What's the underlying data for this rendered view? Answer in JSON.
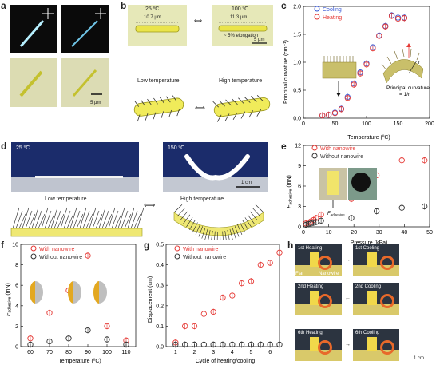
{
  "panels": {
    "a": {
      "label": "a",
      "scalebar": "5 µm"
    },
    "b": {
      "label": "b",
      "left_temp": "25 ºC",
      "right_temp": "100 ºC",
      "left_len": "10.7 µm",
      "right_len": "11.3 µm",
      "elongation": "~ 5% elongation",
      "scalebar": "5 µm",
      "low": "Low temperature",
      "high": "High temperature"
    },
    "c": {
      "label": "c",
      "cooling": "Cooling",
      "heating": "Heating",
      "ylabel": "Principal curvature (cm⁻¹)",
      "xlabel": "Temperature (ºC)",
      "pc_label": "Principal curvature",
      "pc_eq": "= 1/r",
      "r": "r"
    },
    "d": {
      "label": "d",
      "left_temp": "25 ºC",
      "right_temp": "150 ºC",
      "scalebar": "1 cm",
      "low": "Low temperature",
      "high": "High temperature"
    },
    "e": {
      "label": "e",
      "with": "With nanowire",
      "without": "Without nanowire",
      "ylabel": "F",
      "ysub": "adhesive",
      "yunit": " (mN)",
      "xlabel": "Pressure (kPa)",
      "inset_label": "F",
      "inset_sub": "adhesive"
    },
    "f": {
      "label": "f",
      "with": "With nanowire",
      "without": "Without nanowire",
      "ylabel": "F",
      "ysub": "adhesive",
      "yunit": " (mN)",
      "xlabel": "Temperature (ºC)"
    },
    "g": {
      "label": "g",
      "with": "With nanowire",
      "without": "Without nanowire",
      "ylabel": "Displacement (cm)",
      "xlabel": "Cycle of heating/cooling"
    },
    "h": {
      "label": "h",
      "h1": "1st Heating",
      "c1": "1st Cooling",
      "h2": "2nd Heating",
      "c2": "2nd Cooling",
      "h6": "6th Heating",
      "c6": "6th Cooling",
      "flat": "Flat",
      "nanowire": "Nanowire",
      "dots": "...",
      "scalebar": "1 cm"
    }
  },
  "chart_data": [
    {
      "id": "c",
      "type": "scatter",
      "xlim": [
        0,
        200
      ],
      "ylim": [
        0,
        2.0
      ],
      "xticks": [
        0,
        50,
        100,
        150,
        200
      ],
      "yticks": [
        0.0,
        0.5,
        1.0,
        1.5,
        2.0
      ],
      "series": [
        {
          "name": "Cooling",
          "color": "#3b5bd6",
          "x": [
            30,
            40,
            50,
            60,
            70,
            80,
            90,
            100,
            110,
            120,
            130,
            140,
            150,
            160
          ],
          "y": [
            0.05,
            0.06,
            0.1,
            0.17,
            0.38,
            0.62,
            0.82,
            0.98,
            1.27,
            1.48,
            1.65,
            1.84,
            1.8,
            1.8
          ]
        },
        {
          "name": "Heating",
          "color": "#e53935",
          "x": [
            30,
            40,
            50,
            60,
            70,
            80,
            90,
            100,
            110,
            120,
            130,
            140,
            150,
            160
          ],
          "y": [
            0.05,
            0.06,
            0.09,
            0.16,
            0.36,
            0.6,
            0.8,
            0.96,
            1.25,
            1.47,
            1.64,
            1.83,
            1.78,
            1.79
          ]
        }
      ]
    },
    {
      "id": "e",
      "type": "scatter",
      "xlim": [
        0,
        50
      ],
      "ylim": [
        0,
        12
      ],
      "xticks": [
        0,
        10,
        20,
        30,
        40,
        50
      ],
      "yticks": [
        0,
        3,
        6,
        9,
        12
      ],
      "series": [
        {
          "name": "With nanowire",
          "color": "#e53935",
          "x": [
            1,
            2,
            3,
            4,
            5,
            7,
            19,
            29,
            39,
            48
          ],
          "y": [
            0.5,
            0.6,
            0.8,
            1.0,
            1.3,
            1.8,
            4.1,
            7.6,
            9.8,
            9.8
          ]
        },
        {
          "name": "Without nanowire",
          "color": "#333333",
          "x": [
            1,
            2,
            3,
            4,
            5,
            7,
            19,
            29,
            39,
            48
          ],
          "y": [
            0.3,
            0.4,
            0.5,
            0.6,
            0.7,
            0.9,
            1.3,
            2.3,
            2.8,
            3.0
          ]
        }
      ]
    },
    {
      "id": "f",
      "type": "scatter",
      "xlim": [
        55,
        115
      ],
      "ylim": [
        0,
        10
      ],
      "xticks": [
        60,
        70,
        80,
        90,
        100,
        110
      ],
      "yticks": [
        0,
        2,
        4,
        6,
        8,
        10
      ],
      "series": [
        {
          "name": "With nanowire",
          "color": "#e53935",
          "x": [
            60,
            70,
            80,
            90,
            100,
            110
          ],
          "y": [
            0.8,
            3.3,
            5.5,
            8.9,
            2.0,
            0.6
          ]
        },
        {
          "name": "Without nanowire",
          "color": "#333333",
          "x": [
            60,
            70,
            80,
            90,
            100,
            110
          ],
          "y": [
            0.2,
            0.5,
            0.8,
            1.6,
            0.7,
            0.2
          ]
        }
      ]
    },
    {
      "id": "g",
      "type": "scatter",
      "xlim": [
        0.5,
        6.5
      ],
      "ylim": [
        0,
        0.5
      ],
      "xticks": [
        1,
        2,
        3,
        4,
        5,
        6
      ],
      "yticks": [
        0.0,
        0.1,
        0.2,
        0.3,
        0.4,
        0.5
      ],
      "series": [
        {
          "name": "With nanowire",
          "color": "#e53935",
          "x": [
            1,
            1.5,
            2,
            2.5,
            3,
            3.5,
            4,
            4.5,
            5,
            5.5,
            6,
            6.5
          ],
          "y": [
            0.02,
            0.1,
            0.1,
            0.16,
            0.17,
            0.24,
            0.25,
            0.31,
            0.32,
            0.4,
            0.41,
            0.46
          ]
        },
        {
          "name": "Without nanowire",
          "color": "#333333",
          "x": [
            1,
            1.5,
            2,
            2.5,
            3,
            3.5,
            4,
            4.5,
            5,
            5.5,
            6,
            6.5
          ],
          "y": [
            0.01,
            0.01,
            0.01,
            0.01,
            0.01,
            0.01,
            0.01,
            0.01,
            0.01,
            0.01,
            0.01,
            0.01
          ]
        }
      ]
    }
  ]
}
